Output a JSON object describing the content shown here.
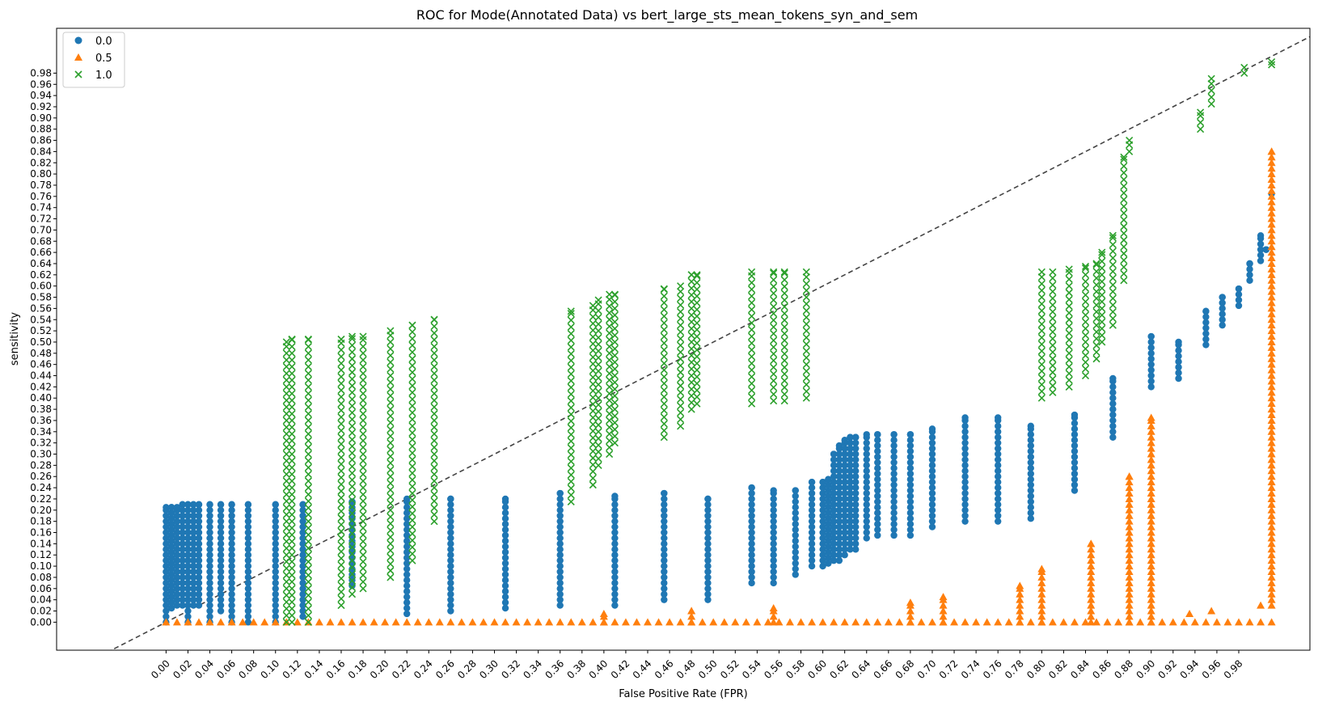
{
  "chart_data": {
    "type": "scatter",
    "title": "ROC for Mode(Annotated Data) vs bert_large_sts_mean_tokens_syn_and_sem",
    "xlabel": "False Positive Rate (FPR)",
    "ylabel": "sensitivity",
    "xlim": [
      -0.1,
      1.045
    ],
    "ylim": [
      -0.05,
      1.06
    ],
    "xticks": [
      "0.00",
      "0.02",
      "0.04",
      "0.06",
      "0.08",
      "0.10",
      "0.12",
      "0.14",
      "0.16",
      "0.18",
      "0.20",
      "0.22",
      "0.24",
      "0.26",
      "0.28",
      "0.30",
      "0.32",
      "0.34",
      "0.36",
      "0.38",
      "0.40",
      "0.42",
      "0.44",
      "0.46",
      "0.48",
      "0.50",
      "0.52",
      "0.54",
      "0.56",
      "0.58",
      "0.60",
      "0.62",
      "0.64",
      "0.66",
      "0.68",
      "0.70",
      "0.72",
      "0.74",
      "0.76",
      "0.78",
      "0.80",
      "0.82",
      "0.84",
      "0.86",
      "0.88",
      "0.90",
      "0.92",
      "0.94",
      "0.96",
      "0.98"
    ],
    "yticks": [
      "0.00",
      "0.02",
      "0.04",
      "0.06",
      "0.08",
      "0.10",
      "0.12",
      "0.14",
      "0.16",
      "0.18",
      "0.20",
      "0.22",
      "0.24",
      "0.26",
      "0.28",
      "0.30",
      "0.32",
      "0.34",
      "0.36",
      "0.38",
      "0.40",
      "0.42",
      "0.44",
      "0.46",
      "0.48",
      "0.50",
      "0.52",
      "0.54",
      "0.56",
      "0.58",
      "0.60",
      "0.62",
      "0.64",
      "0.66",
      "0.68",
      "0.70",
      "0.72",
      "0.74",
      "0.76",
      "0.78",
      "0.80",
      "0.82",
      "0.84",
      "0.86",
      "0.88",
      "0.90",
      "0.92",
      "0.94",
      "0.96",
      "0.98"
    ],
    "grid": false,
    "legend_position": "top-left",
    "reference_line": {
      "style": "dashed",
      "color": "#444444",
      "from": [
        -0.1,
        -0.1
      ],
      "to": [
        1.1,
        1.1
      ]
    },
    "series": [
      {
        "name": "0.0",
        "marker": "circle",
        "color": "#1f77b4",
        "columns": [
          {
            "x": 0.0,
            "ymin": 0.0,
            "ymax": 0.205
          },
          {
            "x": 0.005,
            "ymin": 0.025,
            "ymax": 0.205
          },
          {
            "x": 0.01,
            "ymin": 0.03,
            "ymax": 0.205
          },
          {
            "x": 0.015,
            "ymin": 0.03,
            "ymax": 0.21
          },
          {
            "x": 0.02,
            "ymin": 0.0,
            "ymax": 0.21
          },
          {
            "x": 0.025,
            "ymin": 0.03,
            "ymax": 0.21
          },
          {
            "x": 0.03,
            "ymin": 0.03,
            "ymax": 0.21
          },
          {
            "x": 0.04,
            "ymin": 0.0,
            "ymax": 0.21
          },
          {
            "x": 0.05,
            "ymin": 0.02,
            "ymax": 0.21
          },
          {
            "x": 0.06,
            "ymin": 0.0,
            "ymax": 0.21
          },
          {
            "x": 0.075,
            "ymin": 0.0,
            "ymax": 0.21
          },
          {
            "x": 0.1,
            "ymin": 0.0,
            "ymax": 0.21
          },
          {
            "x": 0.125,
            "ymin": 0.01,
            "ymax": 0.21
          },
          {
            "x": 0.17,
            "ymin": 0.065,
            "ymax": 0.215
          },
          {
            "x": 0.22,
            "ymin": 0.015,
            "ymax": 0.22
          },
          {
            "x": 0.26,
            "ymin": 0.02,
            "ymax": 0.22
          },
          {
            "x": 0.31,
            "ymin": 0.025,
            "ymax": 0.22
          },
          {
            "x": 0.36,
            "ymin": 0.03,
            "ymax": 0.23
          },
          {
            "x": 0.41,
            "ymin": 0.03,
            "ymax": 0.225
          },
          {
            "x": 0.455,
            "ymin": 0.04,
            "ymax": 0.23
          },
          {
            "x": 0.495,
            "ymin": 0.04,
            "ymax": 0.22
          },
          {
            "x": 0.535,
            "ymin": 0.07,
            "ymax": 0.24
          },
          {
            "x": 0.555,
            "ymin": 0.07,
            "ymax": 0.235
          },
          {
            "x": 0.575,
            "ymin": 0.085,
            "ymax": 0.235
          },
          {
            "x": 0.59,
            "ymin": 0.1,
            "ymax": 0.25
          },
          {
            "x": 0.6,
            "ymin": 0.1,
            "ymax": 0.25
          },
          {
            "x": 0.605,
            "ymin": 0.105,
            "ymax": 0.255
          },
          {
            "x": 0.61,
            "ymin": 0.11,
            "ymax": 0.3
          },
          {
            "x": 0.615,
            "ymin": 0.11,
            "ymax": 0.315
          },
          {
            "x": 0.62,
            "ymin": 0.12,
            "ymax": 0.325
          },
          {
            "x": 0.625,
            "ymin": 0.13,
            "ymax": 0.33
          },
          {
            "x": 0.63,
            "ymin": 0.13,
            "ymax": 0.33
          },
          {
            "x": 0.64,
            "ymin": 0.15,
            "ymax": 0.335
          },
          {
            "x": 0.65,
            "ymin": 0.155,
            "ymax": 0.335
          },
          {
            "x": 0.665,
            "ymin": 0.155,
            "ymax": 0.335
          },
          {
            "x": 0.68,
            "ymin": 0.155,
            "ymax": 0.335
          },
          {
            "x": 0.7,
            "ymin": 0.17,
            "ymax": 0.345
          },
          {
            "x": 0.73,
            "ymin": 0.18,
            "ymax": 0.365
          },
          {
            "x": 0.76,
            "ymin": 0.18,
            "ymax": 0.365
          },
          {
            "x": 0.79,
            "ymin": 0.185,
            "ymax": 0.35
          },
          {
            "x": 0.83,
            "ymin": 0.235,
            "ymax": 0.37
          },
          {
            "x": 0.865,
            "ymin": 0.33,
            "ymax": 0.435
          },
          {
            "x": 0.9,
            "ymin": 0.42,
            "ymax": 0.51
          },
          {
            "x": 0.925,
            "ymin": 0.435,
            "ymax": 0.5
          },
          {
            "x": 0.95,
            "ymin": 0.495,
            "ymax": 0.555
          },
          {
            "x": 0.965,
            "ymin": 0.53,
            "ymax": 0.58
          },
          {
            "x": 0.98,
            "ymin": 0.565,
            "ymax": 0.595
          },
          {
            "x": 0.99,
            "ymin": 0.61,
            "ymax": 0.64
          },
          {
            "x": 1.0,
            "ymin": 0.645,
            "ymax": 0.69
          },
          {
            "x": 1.005,
            "ymin": 0.665,
            "ymax": 0.665
          },
          {
            "x": 1.01,
            "ymin": 0.765,
            "ymax": 0.765
          }
        ]
      },
      {
        "name": "0.5",
        "marker": "triangle",
        "color": "#ff7f0e",
        "baseline_x": [
          0.0,
          0.01,
          0.02,
          0.03,
          0.04,
          0.05,
          0.06,
          0.07,
          0.08,
          0.09,
          0.1,
          0.11,
          0.12,
          0.13,
          0.14,
          0.15,
          0.16,
          0.17,
          0.18,
          0.19,
          0.2,
          0.21,
          0.22,
          0.23,
          0.24,
          0.25,
          0.26,
          0.27,
          0.28,
          0.29,
          0.3,
          0.31,
          0.32,
          0.33,
          0.34,
          0.35,
          0.36,
          0.37,
          0.38,
          0.39,
          0.4,
          0.41,
          0.42,
          0.43,
          0.44,
          0.45,
          0.46,
          0.47,
          0.48,
          0.49,
          0.5,
          0.51,
          0.52,
          0.53,
          0.54,
          0.55,
          0.56,
          0.57,
          0.58,
          0.59,
          0.6,
          0.61,
          0.62,
          0.63,
          0.64,
          0.65,
          0.66,
          0.67,
          0.68,
          0.69,
          0.7,
          0.71,
          0.72,
          0.73,
          0.74,
          0.75,
          0.76,
          0.77,
          0.78,
          0.79,
          0.8,
          0.81,
          0.82,
          0.83,
          0.84,
          0.85,
          0.86,
          0.87,
          0.88,
          0.89,
          0.9,
          0.91,
          0.92,
          0.93,
          0.94,
          0.95,
          0.96,
          0.97,
          0.98,
          0.99,
          1.0,
          1.01
        ],
        "columns": [
          {
            "x": 0.4,
            "ymin": 0.0,
            "ymax": 0.015
          },
          {
            "x": 0.48,
            "ymin": 0.0,
            "ymax": 0.02
          },
          {
            "x": 0.555,
            "ymin": 0.0,
            "ymax": 0.025
          },
          {
            "x": 0.68,
            "ymin": 0.0,
            "ymax": 0.035
          },
          {
            "x": 0.71,
            "ymin": 0.0,
            "ymax": 0.045
          },
          {
            "x": 0.78,
            "ymin": 0.0,
            "ymax": 0.065
          },
          {
            "x": 0.8,
            "ymin": 0.0,
            "ymax": 0.095
          },
          {
            "x": 0.845,
            "ymin": 0.0,
            "ymax": 0.14
          },
          {
            "x": 0.88,
            "ymin": 0.0,
            "ymax": 0.26
          },
          {
            "x": 0.9,
            "ymin": 0.0,
            "ymax": 0.365
          },
          {
            "x": 1.01,
            "ymin": 0.03,
            "ymax": 0.84
          }
        ],
        "points": [
          [
            0.935,
            0.015
          ],
          [
            0.955,
            0.02
          ],
          [
            1.0,
            0.03
          ]
        ]
      },
      {
        "name": "1.0",
        "marker": "x",
        "color": "#2ca02c",
        "columns": [
          {
            "x": 0.11,
            "ymin": 0.0,
            "ymax": 0.5
          },
          {
            "x": 0.115,
            "ymin": 0.0,
            "ymax": 0.505
          },
          {
            "x": 0.13,
            "ymin": 0.0,
            "ymax": 0.505
          },
          {
            "x": 0.16,
            "ymin": 0.03,
            "ymax": 0.505
          },
          {
            "x": 0.17,
            "ymin": 0.05,
            "ymax": 0.51
          },
          {
            "x": 0.18,
            "ymin": 0.06,
            "ymax": 0.51
          },
          {
            "x": 0.205,
            "ymin": 0.08,
            "ymax": 0.52
          },
          {
            "x": 0.225,
            "ymin": 0.11,
            "ymax": 0.53
          },
          {
            "x": 0.245,
            "ymin": 0.18,
            "ymax": 0.54
          },
          {
            "x": 0.37,
            "ymin": 0.215,
            "ymax": 0.555
          },
          {
            "x": 0.39,
            "ymin": 0.245,
            "ymax": 0.565
          },
          {
            "x": 0.395,
            "ymin": 0.28,
            "ymax": 0.575
          },
          {
            "x": 0.405,
            "ymin": 0.3,
            "ymax": 0.585
          },
          {
            "x": 0.41,
            "ymin": 0.32,
            "ymax": 0.585
          },
          {
            "x": 0.455,
            "ymin": 0.33,
            "ymax": 0.595
          },
          {
            "x": 0.47,
            "ymin": 0.35,
            "ymax": 0.6
          },
          {
            "x": 0.48,
            "ymin": 0.38,
            "ymax": 0.62
          },
          {
            "x": 0.485,
            "ymin": 0.39,
            "ymax": 0.62
          },
          {
            "x": 0.535,
            "ymin": 0.39,
            "ymax": 0.625
          },
          {
            "x": 0.555,
            "ymin": 0.395,
            "ymax": 0.625
          },
          {
            "x": 0.565,
            "ymin": 0.395,
            "ymax": 0.625
          },
          {
            "x": 0.585,
            "ymin": 0.4,
            "ymax": 0.625
          },
          {
            "x": 0.8,
            "ymin": 0.4,
            "ymax": 0.625
          },
          {
            "x": 0.81,
            "ymin": 0.41,
            "ymax": 0.625
          },
          {
            "x": 0.825,
            "ymin": 0.42,
            "ymax": 0.63
          },
          {
            "x": 0.84,
            "ymin": 0.44,
            "ymax": 0.635
          },
          {
            "x": 0.85,
            "ymin": 0.47,
            "ymax": 0.64
          },
          {
            "x": 0.855,
            "ymin": 0.5,
            "ymax": 0.66
          },
          {
            "x": 0.865,
            "ymin": 0.53,
            "ymax": 0.69
          },
          {
            "x": 0.875,
            "ymin": 0.61,
            "ymax": 0.83
          },
          {
            "x": 0.88,
            "ymin": 0.84,
            "ymax": 0.86
          },
          {
            "x": 0.945,
            "ymin": 0.88,
            "ymax": 0.91
          },
          {
            "x": 0.955,
            "ymin": 0.925,
            "ymax": 0.97
          },
          {
            "x": 0.985,
            "ymin": 0.98,
            "ymax": 0.99
          },
          {
            "x": 1.01,
            "ymin": 0.995,
            "ymax": 1.0
          }
        ]
      }
    ]
  }
}
